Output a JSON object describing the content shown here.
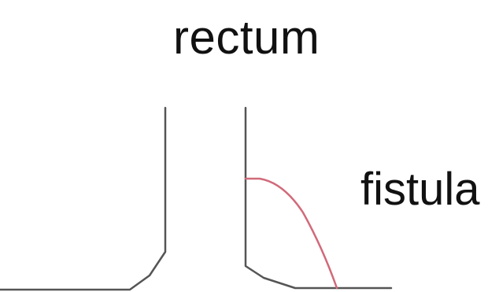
{
  "labels": {
    "rectum": "rectum",
    "fistula": "fistula"
  },
  "colors": {
    "wall_line": "#555555",
    "fistula_line": "#d16a7a",
    "text": "#111111",
    "background": "#ffffff"
  }
}
